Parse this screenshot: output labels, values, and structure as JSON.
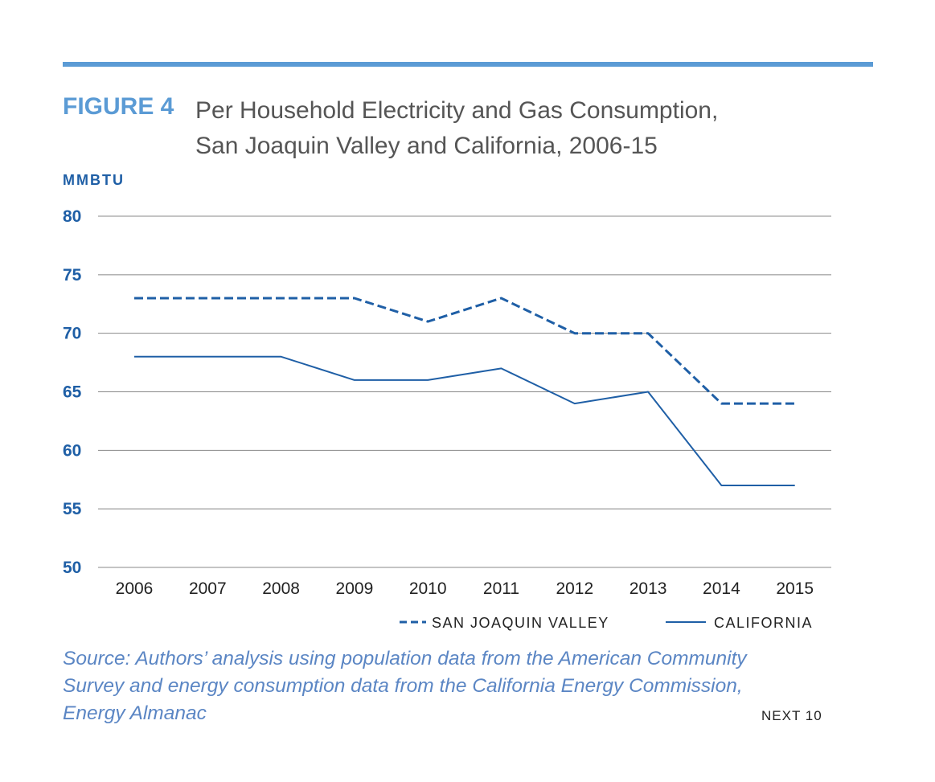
{
  "header": {
    "figure_label": "FIGURE 4",
    "title_line1": "Per Household Electricity and Gas Consumption,",
    "title_line2": "San Joaquin Valley and California, 2006-15"
  },
  "colors": {
    "accent": "#5b9bd5",
    "series": "#1f5fa6",
    "grid": "#888888",
    "source_text": "#5b86c4"
  },
  "chart_data": {
    "type": "line",
    "ylabel": "MMBTU",
    "xlabel": "",
    "x": [
      "2006",
      "2007",
      "2008",
      "2009",
      "2010",
      "2011",
      "2012",
      "2013",
      "2014",
      "2015"
    ],
    "ylim": [
      50,
      80
    ],
    "yticks": [
      50,
      55,
      60,
      65,
      70,
      75,
      80
    ],
    "grid": true,
    "legend_position": "bottom-right",
    "series": [
      {
        "name": "SAN JOAQUIN VALLEY",
        "style": "dashed",
        "values": [
          73,
          73,
          73,
          73,
          71,
          73,
          70,
          70,
          64,
          64
        ]
      },
      {
        "name": "CALIFORNIA",
        "style": "solid",
        "values": [
          68,
          68,
          68,
          66,
          66,
          67,
          64,
          65,
          57,
          57
        ]
      }
    ]
  },
  "footer": {
    "source_line1": "Source: Authors’ analysis using population data from the American Community",
    "source_line2": "Survey and energy consumption data from the California Energy Commission,",
    "source_line3": "Energy Almanac",
    "brand": "NEXT 10"
  }
}
